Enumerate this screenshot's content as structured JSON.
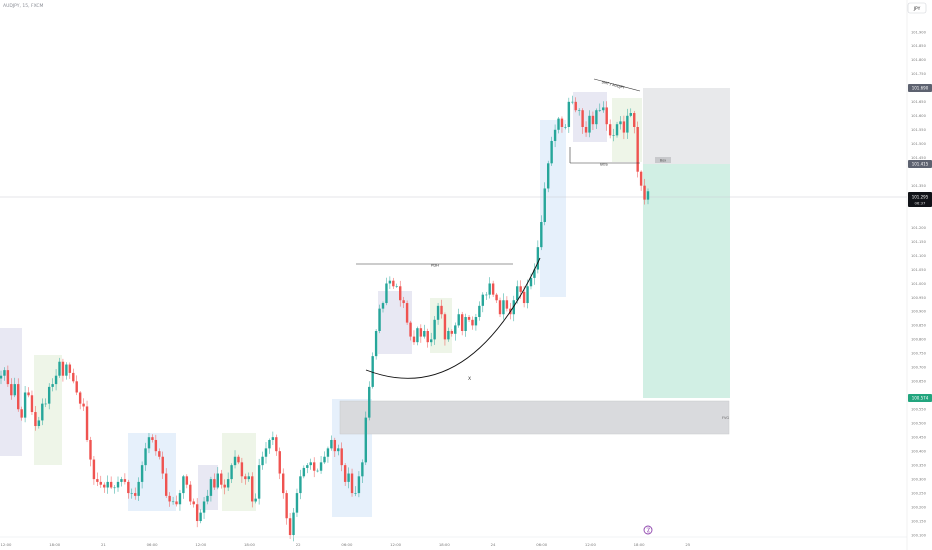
{
  "header": {
    "symbol_label": "AUDJPY, 15, FXCM"
  },
  "topright": {
    "currency": "JPY"
  },
  "chart_data": {
    "type": "candlestick",
    "symbol": "AUDJPY",
    "timeframe": "15",
    "ylim": [
      100.1,
      101.95
    ],
    "price_ticks": [
      "101.900",
      "101.850",
      "101.800",
      "101.750",
      "101.650",
      "101.600",
      "101.550",
      "101.500",
      "101.450",
      "101.350",
      "101.300",
      "101.200",
      "101.150",
      "101.100",
      "101.050",
      "101.000",
      "100.950",
      "100.900",
      "100.850",
      "100.800",
      "100.750",
      "100.700",
      "100.650",
      "100.600",
      "100.550",
      "100.500",
      "100.450",
      "100.400",
      "100.350",
      "100.300",
      "100.250",
      "100.200",
      "100.150",
      "100.100"
    ],
    "time_ticks": [
      "12:00",
      "18:00",
      "21",
      "06:00",
      "12:00",
      "18:00",
      "22",
      "06:00",
      "12:00",
      "18:00",
      "24",
      "06:00",
      "12:00",
      "18:00",
      "25"
    ],
    "badges": {
      "target": "101.690",
      "entry": "101.415",
      "current": "101.295",
      "countdown": "06:37",
      "stop": "100.574"
    },
    "annotations": {
      "pdh": "PDH",
      "bos": "BOS",
      "sweep": "SMT / AUDJPY",
      "curve": "X",
      "zone": "FVG",
      "box": "Box",
      "extreme": "hh"
    },
    "series": [
      {
        "values": [
          100.67,
          100.69,
          100.64,
          100.6,
          100.64,
          100.55,
          100.52,
          100.61,
          100.6,
          100.54,
          100.49,
          100.51,
          100.57,
          100.57,
          100.63,
          100.64,
          100.67,
          100.72,
          100.67,
          100.71,
          100.68,
          100.65,
          100.61,
          100.57,
          100.56,
          100.44,
          100.37,
          100.3,
          100.29,
          100.28,
          100.27,
          100.29,
          100.27,
          100.27,
          100.29,
          100.3,
          100.29,
          100.25,
          100.25,
          100.24,
          100.29,
          100.35,
          100.41,
          100.45,
          100.44,
          100.4,
          100.38,
          100.32,
          100.24,
          100.22,
          100.22,
          100.21,
          100.25,
          100.31,
          100.28,
          100.22,
          100.21,
          100.15,
          100.18,
          100.22,
          100.24,
          100.3,
          100.27,
          100.32,
          100.28,
          100.27,
          100.3,
          100.35,
          100.38,
          100.36,
          100.31,
          100.3,
          100.31,
          100.22,
          100.23,
          100.35,
          100.38,
          100.41,
          100.44,
          100.45,
          100.4,
          100.32,
          100.25,
          100.16,
          100.1,
          100.18,
          100.25,
          100.31,
          100.34,
          100.35,
          100.36,
          100.33,
          100.33,
          100.36,
          100.38,
          100.41,
          100.44,
          100.4,
          100.41,
          100.35,
          100.29,
          100.32,
          100.25,
          100.25,
          100.31,
          100.36,
          100.52,
          100.63,
          100.74,
          100.83,
          100.91,
          100.93,
          101.0,
          101.01,
          100.99,
          100.99,
          100.94,
          100.93,
          100.86,
          100.81,
          100.79,
          100.84,
          100.81,
          100.83,
          100.79,
          100.8,
          100.87,
          100.92,
          100.89,
          100.8,
          100.83,
          100.82,
          100.85,
          100.89,
          100.83,
          100.88,
          100.87,
          100.85,
          100.88,
          100.92,
          100.96,
          100.96,
          101.0,
          100.96,
          100.94,
          100.89,
          100.94,
          100.91,
          100.89,
          100.94,
          100.99,
          100.97,
          100.93,
          100.99,
          101.02,
          101.05,
          101.13,
          101.22,
          101.34,
          101.43,
          101.51,
          101.55,
          101.59,
          101.56,
          101.56,
          101.65,
          101.65,
          101.62,
          101.62,
          101.56,
          101.54,
          101.6,
          101.57,
          101.62,
          101.62,
          101.63,
          101.57,
          101.53,
          101.53,
          101.57,
          101.58,
          101.54,
          101.6,
          101.61,
          101.56,
          101.4,
          101.35,
          101.3,
          101.33
        ]
      }
    ]
  }
}
